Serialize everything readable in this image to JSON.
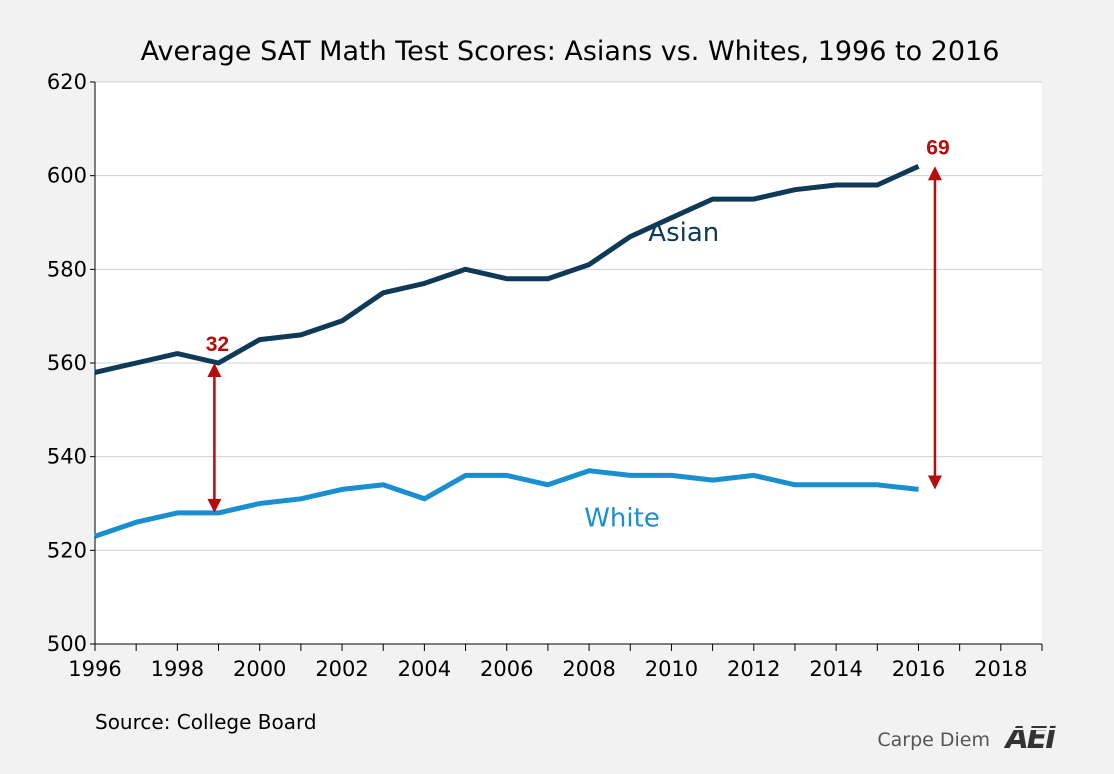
{
  "chart_data": {
    "type": "line",
    "title": "Average SAT Math Test Scores: Asians vs. Whites, 1996 to 2016",
    "xlabel": "",
    "ylabel": "",
    "xlim": [
      1996,
      2019
    ],
    "ylim": [
      500,
      620
    ],
    "x_ticks": [
      1996,
      1998,
      2000,
      2002,
      2004,
      2006,
      2008,
      2010,
      2012,
      2014,
      2016,
      2018
    ],
    "y_ticks": [
      500,
      520,
      540,
      560,
      580,
      600,
      620
    ],
    "grid": true,
    "x": [
      1996,
      1997,
      1998,
      1999,
      2000,
      2001,
      2002,
      2003,
      2004,
      2005,
      2006,
      2007,
      2008,
      2009,
      2010,
      2011,
      2012,
      2013,
      2014,
      2015,
      2016
    ],
    "series": [
      {
        "name": "Asian",
        "color": "#0e3a57",
        "values": [
          558,
          560,
          562,
          560,
          565,
          566,
          569,
          575,
          577,
          580,
          578,
          578,
          581,
          587,
          591,
          595,
          595,
          597,
          598,
          598,
          602
        ]
      },
      {
        "name": "White",
        "color": "#1a8fcf",
        "values": [
          523,
          526,
          528,
          528,
          530,
          531,
          533,
          534,
          531,
          536,
          536,
          534,
          537,
          536,
          536,
          535,
          536,
          534,
          534,
          534,
          533
        ]
      }
    ],
    "series_labels": [
      {
        "text": "Asian",
        "x": 2010.3,
        "y": 588,
        "color": "#0e3a57"
      },
      {
        "text": "White",
        "x": 2008.8,
        "y": 527,
        "color": "#1a8fcf"
      }
    ],
    "annotations": [
      {
        "text": "32",
        "x": 1998.9,
        "y_from": 528,
        "y_to": 560,
        "color": "#b50d0d"
      },
      {
        "text": "69",
        "x": 2016.4,
        "y_from": 533,
        "y_to": 602,
        "color": "#b50d0d"
      }
    ]
  },
  "footer": {
    "source": "Source: College Board",
    "brand": "Carpe Diem",
    "logo_text": "AEI"
  }
}
